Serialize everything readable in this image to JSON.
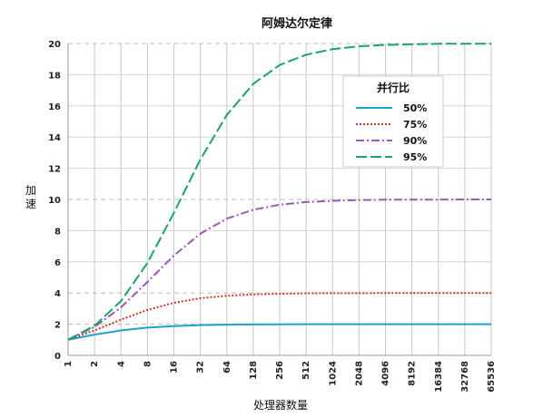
{
  "chart_data": {
    "type": "line",
    "title": "阿姆达尔定律",
    "xlabel": "处理器数量",
    "ylabel": "加速",
    "x_scale": "log2",
    "x": [
      1,
      2,
      4,
      8,
      16,
      32,
      64,
      128,
      256,
      512,
      1024,
      2048,
      4096,
      8192,
      16384,
      32768,
      65536
    ],
    "x_tick_labels": [
      "1",
      "2",
      "4",
      "8",
      "16",
      "32",
      "64",
      "128",
      "256",
      "512",
      "1024",
      "2048",
      "4096",
      "8192",
      "16384",
      "32768",
      "65536"
    ],
    "ylim": [
      0,
      20
    ],
    "y_ticks": [
      0,
      2,
      4,
      6,
      8,
      10,
      12,
      14,
      16,
      18,
      20
    ],
    "grid": true,
    "legend": {
      "title": "并行比",
      "position": "top-right"
    },
    "series": [
      {
        "name": "50%",
        "color": "#1aa3d1",
        "dash": "solid",
        "values": [
          1,
          1.33,
          1.6,
          1.78,
          1.88,
          1.94,
          1.97,
          1.98,
          1.99,
          2.0,
          2.0,
          2.0,
          2.0,
          2.0,
          2.0,
          2.0,
          2.0
        ]
      },
      {
        "name": "75%",
        "color": "#c0392b",
        "dash": "dotted",
        "values": [
          1,
          1.6,
          2.29,
          2.91,
          3.37,
          3.66,
          3.82,
          3.91,
          3.95,
          3.98,
          3.99,
          3.99,
          4.0,
          4.0,
          4.0,
          4.0,
          4.0
        ]
      },
      {
        "name": "90%",
        "color": "#9b59b6",
        "dash": "dashdot",
        "values": [
          1,
          1.82,
          3.08,
          4.71,
          6.4,
          7.8,
          8.77,
          9.34,
          9.66,
          9.83,
          9.91,
          9.96,
          9.98,
          9.99,
          9.99,
          10.0,
          10.0
        ]
      },
      {
        "name": "95%",
        "color": "#1aa36b",
        "dash": "dashed",
        "values": [
          1,
          1.9,
          3.48,
          5.93,
          9.14,
          12.55,
          15.42,
          17.41,
          18.62,
          19.28,
          19.64,
          19.82,
          19.91,
          19.95,
          19.98,
          19.99,
          19.99
        ]
      }
    ]
  }
}
